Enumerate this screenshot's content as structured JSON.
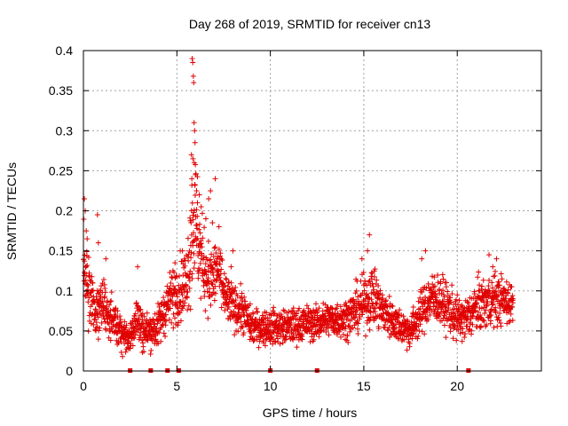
{
  "chart_data": {
    "type": "scatter",
    "title": "Day 268 of 2019, SRMTID for receiver cn13",
    "xlabel": "GPS time / hours",
    "ylabel": "SRMTID / TECUs",
    "xlim": [
      0,
      24.5
    ],
    "ylim": [
      0,
      0.4
    ],
    "x_ticks": [
      0,
      5,
      10,
      15,
      20
    ],
    "x_tick_labels": [
      "0",
      "5",
      "10",
      "15",
      "20"
    ],
    "y_ticks": [
      0,
      0.05,
      0.1,
      0.15,
      0.2,
      0.25,
      0.3,
      0.35,
      0.4
    ],
    "y_tick_labels": [
      "0",
      "0.05",
      "0.1",
      "0.15",
      "0.2",
      "0.25",
      "0.3",
      "0.35",
      "0.4"
    ],
    "grid": true,
    "marker": "plus",
    "color": "#e00000",
    "series_name": "SRMTID",
    "sample_step_hours": 0.01,
    "baseline_profile": {
      "t": [
        0,
        0.3,
        0.6,
        1,
        1.5,
        2,
        2.5,
        2.8,
        3.2,
        3.6,
        4,
        4.5,
        5,
        5.5,
        5.9,
        6.3,
        6.8,
        7.2,
        7.6,
        8,
        8.5,
        9,
        10,
        11,
        12,
        12.5,
        13,
        14,
        15,
        15.5,
        16,
        17,
        17.5,
        18,
        18.5,
        19,
        20,
        20.5,
        21,
        21.5,
        22,
        23
      ],
      "mean": [
        0.13,
        0.095,
        0.08,
        0.085,
        0.06,
        0.05,
        0.04,
        0.07,
        0.05,
        0.05,
        0.055,
        0.085,
        0.1,
        0.11,
        0.2,
        0.14,
        0.11,
        0.13,
        0.09,
        0.08,
        0.075,
        0.055,
        0.055,
        0.055,
        0.06,
        0.06,
        0.065,
        0.065,
        0.085,
        0.095,
        0.075,
        0.055,
        0.05,
        0.07,
        0.09,
        0.09,
        0.065,
        0.065,
        0.08,
        0.085,
        0.09,
        0.085
      ],
      "spread": [
        0.05,
        0.04,
        0.035,
        0.035,
        0.025,
        0.02,
        0.02,
        0.03,
        0.025,
        0.02,
        0.025,
        0.03,
        0.035,
        0.04,
        0.09,
        0.05,
        0.04,
        0.04,
        0.03,
        0.025,
        0.025,
        0.02,
        0.02,
        0.02,
        0.02,
        0.02,
        0.02,
        0.022,
        0.03,
        0.035,
        0.025,
        0.02,
        0.02,
        0.025,
        0.03,
        0.03,
        0.025,
        0.025,
        0.03,
        0.03,
        0.03,
        0.025
      ]
    },
    "peak_points": [
      {
        "x": 5.82,
        "y": 0.39
      },
      {
        "x": 5.85,
        "y": 0.385
      },
      {
        "x": 5.88,
        "y": 0.368
      },
      {
        "x": 5.9,
        "y": 0.36
      },
      {
        "x": 5.92,
        "y": 0.31
      },
      {
        "x": 5.95,
        "y": 0.3
      },
      {
        "x": 5.97,
        "y": 0.285
      },
      {
        "x": 5.78,
        "y": 0.27
      },
      {
        "x": 5.86,
        "y": 0.265
      },
      {
        "x": 5.93,
        "y": 0.26
      },
      {
        "x": 6.0,
        "y": 0.245
      },
      {
        "x": 5.8,
        "y": 0.24
      },
      {
        "x": 6.05,
        "y": 0.225
      },
      {
        "x": 6.1,
        "y": 0.21
      },
      {
        "x": 6.2,
        "y": 0.22
      },
      {
        "x": 6.3,
        "y": 0.205
      },
      {
        "x": 6.55,
        "y": 0.19
      },
      {
        "x": 6.7,
        "y": 0.215
      },
      {
        "x": 6.8,
        "y": 0.225
      },
      {
        "x": 7.05,
        "y": 0.24
      },
      {
        "x": 6.9,
        "y": 0.185
      },
      {
        "x": 0.05,
        "y": 0.215
      },
      {
        "x": 0.1,
        "y": 0.2
      },
      {
        "x": 0.15,
        "y": 0.175
      },
      {
        "x": 0.2,
        "y": 0.165
      },
      {
        "x": 0.75,
        "y": 0.195
      },
      {
        "x": 0.8,
        "y": 0.16
      },
      {
        "x": 1.2,
        "y": 0.14
      },
      {
        "x": 15.3,
        "y": 0.17
      },
      {
        "x": 15.2,
        "y": 0.15
      },
      {
        "x": 14.9,
        "y": 0.14
      },
      {
        "x": 18.3,
        "y": 0.15
      },
      {
        "x": 18.1,
        "y": 0.14
      },
      {
        "x": 21.7,
        "y": 0.145
      },
      {
        "x": 22.1,
        "y": 0.14
      },
      {
        "x": 21.9,
        "y": 0.13
      },
      {
        "x": 4.9,
        "y": 0.135
      },
      {
        "x": 5.3,
        "y": 0.15
      },
      {
        "x": 8.0,
        "y": 0.15
      },
      {
        "x": 7.9,
        "y": 0.13
      },
      {
        "x": 2.9,
        "y": 0.13
      }
    ],
    "baseline_markers_x": [
      2.5,
      3.6,
      4.5,
      5.1,
      10.0,
      12.5,
      20.6
    ]
  }
}
